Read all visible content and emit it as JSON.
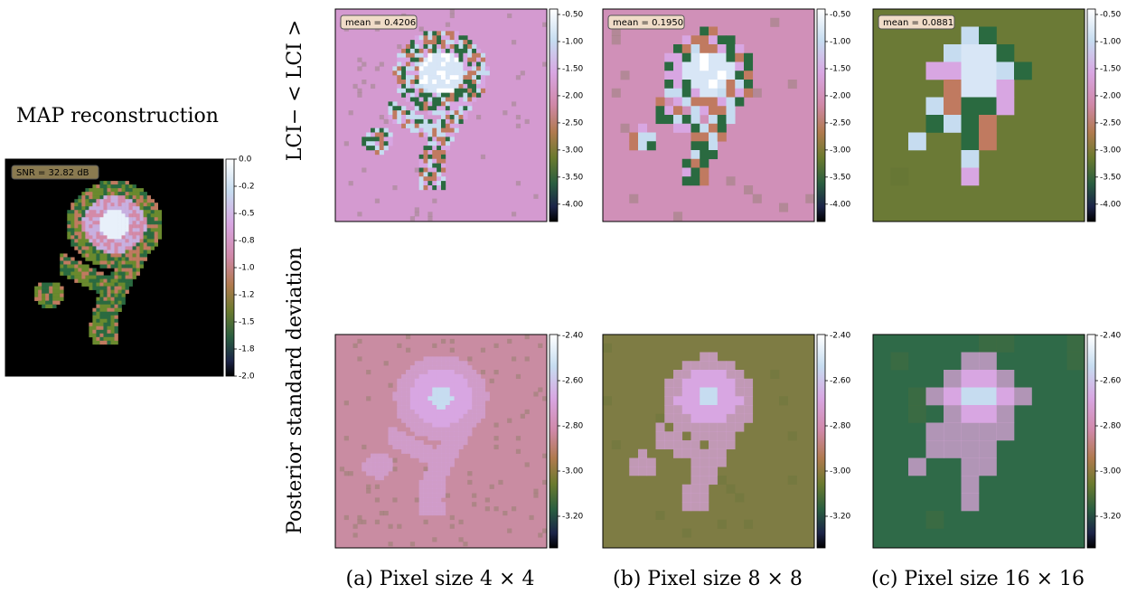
{
  "map_panel": {
    "title": "MAP reconstruction",
    "snr_label": "SNR = 32.82 dB",
    "colorbar": {
      "vlim": [
        0.0,
        -2.0
      ],
      "ticks": [
        {
          "value": 0.0,
          "label": "0.0"
        },
        {
          "value": -0.25,
          "label": "-0.2"
        },
        {
          "value": -0.5,
          "label": "-0.5"
        },
        {
          "value": -0.75,
          "label": "-0.8"
        },
        {
          "value": -1.0,
          "label": "-1.0"
        },
        {
          "value": -1.25,
          "label": "-1.2"
        },
        {
          "value": -1.5,
          "label": "-1.5"
        },
        {
          "value": -1.75,
          "label": "-1.8"
        },
        {
          "value": -2.0,
          "label": "-2.0"
        }
      ]
    }
  },
  "row_labels": [
    "LCI− < LCI >",
    "Posterior standard deviation"
  ],
  "top_colorbar": {
    "vlim": [
      -0.4,
      -4.32
    ],
    "ticks": [
      {
        "value": -0.5,
        "label": "-0.50"
      },
      {
        "value": -1.0,
        "label": "-1.00"
      },
      {
        "value": -1.5,
        "label": "-1.50"
      },
      {
        "value": -2.0,
        "label": "-2.00"
      },
      {
        "value": -2.5,
        "label": "-2.50"
      },
      {
        "value": -3.0,
        "label": "-3.00"
      },
      {
        "value": -3.5,
        "label": "-3.50"
      },
      {
        "value": -4.0,
        "label": "-4.00"
      }
    ]
  },
  "bottom_colorbar": {
    "vlim": [
      -2.396,
      -3.34
    ],
    "ticks": [
      {
        "value": -2.4,
        "label": "-2.40"
      },
      {
        "value": -2.6,
        "label": "-2.60"
      },
      {
        "value": -2.8,
        "label": "-2.80"
      },
      {
        "value": -3.0,
        "label": "-3.00"
      },
      {
        "value": -3.2,
        "label": "-3.20"
      }
    ]
  },
  "columns": [
    {
      "mean_label": "mean = 0.4206",
      "caption": "(a) Pixel size 4 × 4"
    },
    {
      "mean_label": "mean = 0.1950",
      "caption": "(b) Pixel size 8 × 8"
    },
    {
      "mean_label": "mean = 0.0881",
      "caption": "(c) Pixel size 16 × 16"
    }
  ]
}
